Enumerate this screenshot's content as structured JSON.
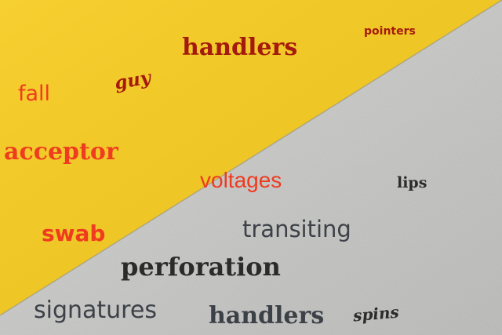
{
  "colors": {
    "yellow_surface": "#f6cb1e",
    "concrete_surface": "#cfcfcd",
    "red": "#ef3b1f",
    "dark_red": "#a41a0e",
    "dark_gray": "#2b2b2b",
    "slate_gray": "#3c4147"
  },
  "words": {
    "handlers_top": "handlers",
    "pointers": "pointers",
    "guy": "guy",
    "fall": "fall",
    "acceptor": "acceptor",
    "voltages": "voltages",
    "lips": "lips",
    "swab": "swab",
    "transiting": "transiting",
    "perforation": "perforation",
    "signatures": "signatures",
    "handlers_bottom": "handlers",
    "spins": "spins"
  }
}
